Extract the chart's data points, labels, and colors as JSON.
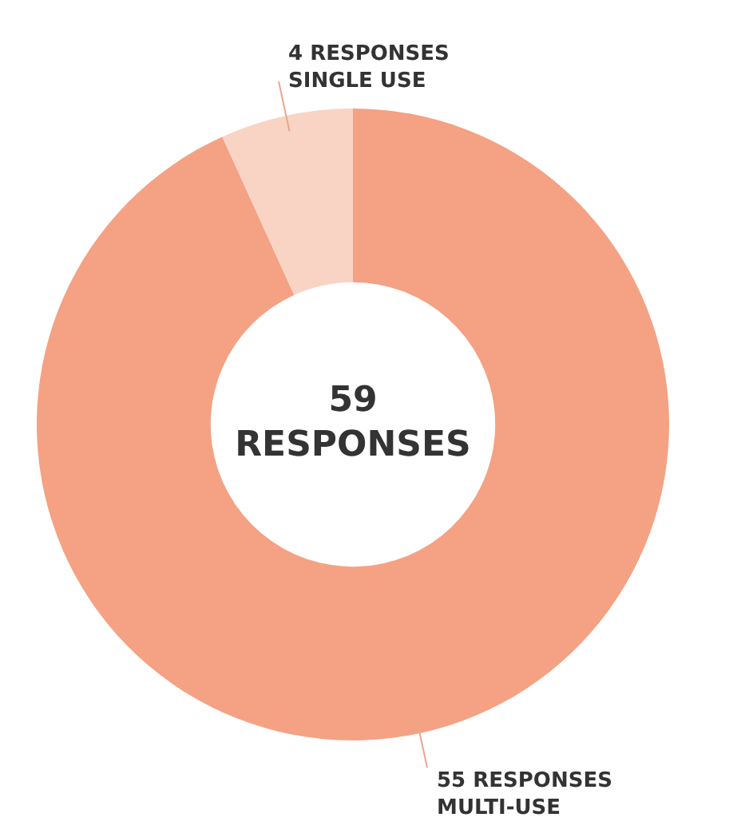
{
  "chart_data": {
    "type": "donut",
    "categories": [
      "MULTI-USE",
      "SINGLE USE"
    ],
    "values": [
      55,
      4
    ],
    "colors": [
      "#f4a283",
      "#f9d3c3"
    ],
    "value_labels": [
      "55 RESPONSES",
      "4 RESPONSES"
    ],
    "annotations": [
      "59 RESPONSES"
    ],
    "legend": false
  }
}
